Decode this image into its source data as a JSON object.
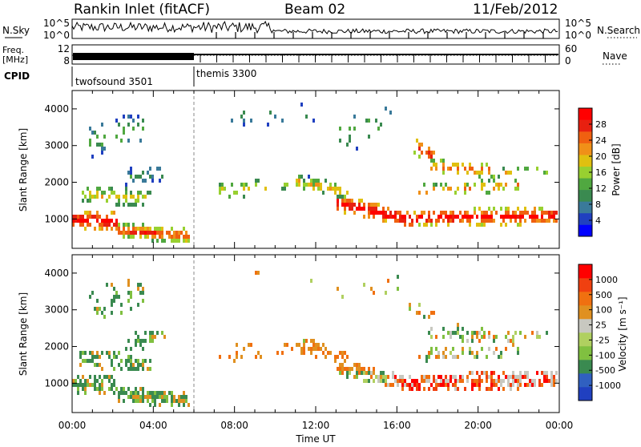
{
  "header": {
    "station": "Rankin Inlet (fitACF)",
    "beam": "Beam 02",
    "date": "11/Feb/2012"
  },
  "colors": {
    "power_scale": [
      "#0000ff",
      "#2040c0",
      "#3a7a9a",
      "#3a8a50",
      "#50a840",
      "#98d030",
      "#e0c010",
      "#f09018",
      "#f06010",
      "#e82010",
      "#ff0000"
    ],
    "velocity_scale": [
      "#2040c0",
      "#3060c0",
      "#3a8a50",
      "#80c040",
      "#b0d060",
      "#c8c8c0",
      "#e09020",
      "#f07010",
      "#f04010",
      "#ff0000"
    ]
  },
  "chart_data": [
    {
      "type": "line",
      "panel": "noise",
      "left_label": "N.Sky",
      "right_label": "N.Search",
      "left_ticks": [
        "10^5",
        "10^0"
      ],
      "right_ticks": [
        "10^5",
        "10^0"
      ]
    },
    {
      "type": "line",
      "panel": "frequency",
      "left_label_line1": "Freq.",
      "left_label_line2": "[MHz]",
      "right_label": "Nave",
      "left_ticks": [
        "12",
        "8"
      ],
      "right_ticks": [
        "60",
        "0"
      ]
    },
    {
      "type": "table",
      "panel": "cpid",
      "label": "CPID",
      "modes": [
        {
          "name": "twofsound 3501",
          "start_hour": 0,
          "end_hour": 6
        },
        {
          "name": "themis 3300",
          "start_hour": 6,
          "end_hour": 24
        }
      ]
    },
    {
      "type": "heatmap",
      "panel": "power",
      "ylabel": "Slant Range [km]",
      "y_ticks": [
        1000,
        2000,
        3000,
        4000
      ],
      "ylim": [
        200,
        4500
      ],
      "xlim": [
        0,
        24
      ],
      "colorbar_label": "Power [dB]",
      "colorbar_ticks": [
        "28",
        "24",
        "20",
        "16",
        "12",
        "8",
        "4"
      ]
    },
    {
      "type": "heatmap",
      "panel": "velocity",
      "ylabel": "Slant Range [km]",
      "y_ticks": [
        1000,
        2000,
        3000,
        4000
      ],
      "ylim": [
        200,
        4500
      ],
      "xlim": [
        0,
        24
      ],
      "xlabel": "Time UT",
      "x_ticks": [
        "00:00",
        "04:00",
        "08:00",
        "12:00",
        "16:00",
        "20:00",
        "00:00"
      ],
      "colorbar_label": "Velocity [m s⁻¹]",
      "colorbar_ticks": [
        "1000",
        "500",
        "100",
        "25",
        "-25",
        "-100",
        "-500",
        "-1000"
      ]
    }
  ]
}
